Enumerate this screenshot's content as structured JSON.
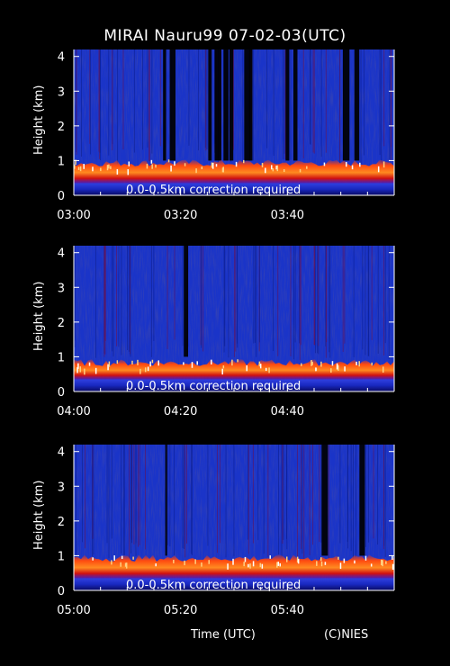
{
  "title": "MIRAI Nauru99 07-02-03(UTC)",
  "xlabel": "Time (UTC)",
  "credit": "(C)NIES",
  "chart_data": [
    {
      "type": "heatmap",
      "ylabel": "Height (km)",
      "yticks": [
        0,
        1,
        2,
        3,
        4
      ],
      "ylim": [
        0,
        4.2
      ],
      "xlim": [
        "03:00",
        "04:00"
      ],
      "xticks": [
        "03:00",
        "03:20",
        "03:40"
      ],
      "annotation": "0.0-0.5km correction required",
      "layer_km": [
        0.35,
        0.95
      ],
      "dark_columns_min": [
        17,
        18.5,
        25.5,
        27,
        28.5,
        29.5,
        32.5,
        33.2,
        40,
        41.5,
        51,
        53
      ],
      "colors": [
        "#1838d8",
        "#ff2a10",
        "#ffffff",
        "#000000"
      ]
    },
    {
      "type": "heatmap",
      "ylabel": "Height (km)",
      "yticks": [
        0,
        1,
        2,
        3,
        4
      ],
      "ylim": [
        0,
        4.2
      ],
      "xlim": [
        "04:00",
        "05:00"
      ],
      "xticks": [
        "04:00",
        "04:20",
        "04:40"
      ],
      "annotation": "0.0-0.5km correction required",
      "layer_km": [
        0.35,
        0.85
      ],
      "dark_columns_min": [
        21
      ],
      "colors": [
        "#1838d8",
        "#ff2a10",
        "#ffffff",
        "#000000"
      ]
    },
    {
      "type": "heatmap",
      "ylabel": "Height (km)",
      "yticks": [
        0,
        1,
        2,
        3,
        4
      ],
      "ylim": [
        0,
        4.2
      ],
      "xlim": [
        "05:00",
        "06:00"
      ],
      "xticks": [
        "05:00",
        "05:20",
        "05:40"
      ],
      "annotation": "0.0-0.5km correction required",
      "layer_km": [
        0.35,
        0.95
      ],
      "dark_columns_min": [
        17.3,
        47,
        54
      ],
      "colors": [
        "#1838d8",
        "#ff2a10",
        "#ffffff",
        "#000000"
      ]
    }
  ]
}
